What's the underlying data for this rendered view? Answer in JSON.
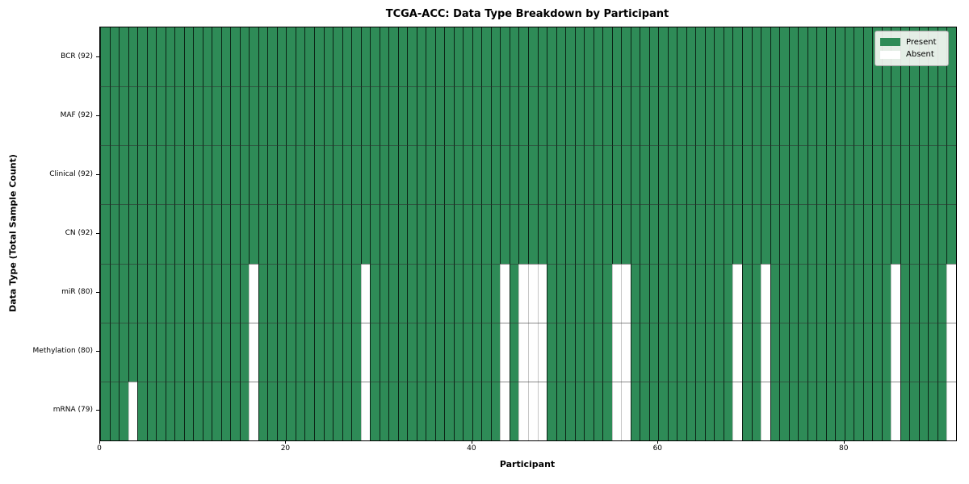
{
  "title": "TCGA-ACC: Data Type Breakdown by Participant",
  "legend": {
    "present_label": "Present",
    "absent_label": "Absent"
  },
  "colors": {
    "present": "#2e8b57",
    "absent": "#ffffff"
  },
  "chart_data": {
    "type": "heatmap",
    "title": "TCGA-ACC: Data Type Breakdown by Participant",
    "xlabel": "Participant",
    "ylabel": "Data Type (Total Sample Count)",
    "n_participants": 92,
    "x_ticks": [
      0,
      20,
      40,
      60,
      80
    ],
    "x_range": [
      0,
      92
    ],
    "legend_entries": [
      {
        "label": "Present",
        "color": "#2e8b57"
      },
      {
        "label": "Absent",
        "color": "#ffffff"
      }
    ],
    "legend_position": "upper right",
    "grid": "cell-borders",
    "rows": [
      {
        "label": "BCR (92)",
        "data_type": "BCR",
        "total_sample_count": 92,
        "absent_participants": []
      },
      {
        "label": "MAF (92)",
        "data_type": "MAF",
        "total_sample_count": 92,
        "absent_participants": []
      },
      {
        "label": "Clinical (92)",
        "data_type": "Clinical",
        "total_sample_count": 92,
        "absent_participants": []
      },
      {
        "label": "CN (92)",
        "data_type": "CN",
        "total_sample_count": 92,
        "absent_participants": []
      },
      {
        "label": "miR (80)",
        "data_type": "miR",
        "total_sample_count": 80,
        "absent_participants": [
          16,
          28,
          43,
          45,
          46,
          47,
          55,
          56,
          68,
          71,
          85,
          91
        ]
      },
      {
        "label": "Methylation (80)",
        "data_type": "Methylation",
        "total_sample_count": 80,
        "absent_participants": [
          16,
          28,
          43,
          45,
          46,
          47,
          55,
          56,
          68,
          71,
          85,
          91
        ]
      },
      {
        "label": "mRNA (79)",
        "data_type": "mRNA",
        "total_sample_count": 79,
        "absent_participants": [
          3,
          16,
          28,
          43,
          45,
          46,
          47,
          55,
          56,
          68,
          71,
          85,
          91
        ]
      }
    ]
  }
}
